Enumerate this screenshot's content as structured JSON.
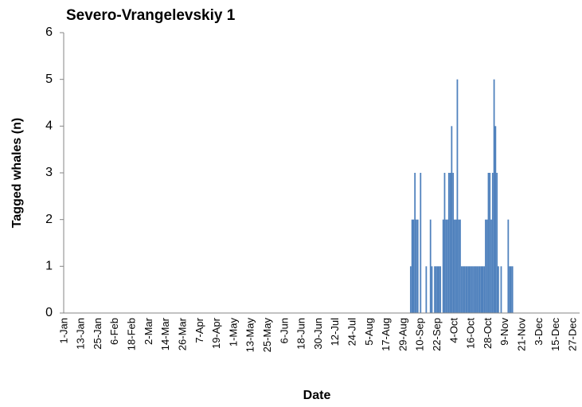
{
  "chart_data": {
    "type": "bar",
    "title": "Severo-Vrangelevskiy 1",
    "x_label": "Date",
    "y_label": "Tagged whales (n)",
    "color": "#4f81bd",
    "ylim": [
      0,
      6
    ],
    "yticks": [
      0,
      1,
      2,
      3,
      4,
      5,
      6
    ],
    "grid": false,
    "categories": [
      "1-Jan",
      null,
      null,
      null,
      null,
      null,
      null,
      null,
      null,
      null,
      null,
      null,
      "13-Jan",
      null,
      null,
      null,
      null,
      null,
      null,
      null,
      null,
      null,
      null,
      null,
      "25-Jan",
      null,
      null,
      null,
      null,
      null,
      null,
      null,
      null,
      null,
      null,
      null,
      "6-Feb",
      null,
      null,
      null,
      null,
      null,
      null,
      null,
      null,
      null,
      null,
      null,
      "18-Feb",
      null,
      null,
      null,
      null,
      null,
      null,
      null,
      null,
      null,
      null,
      null,
      "2-Mar",
      null,
      null,
      null,
      null,
      null,
      null,
      null,
      null,
      null,
      null,
      null,
      "14-Mar",
      null,
      null,
      null,
      null,
      null,
      null,
      null,
      null,
      null,
      null,
      null,
      "26-Mar",
      null,
      null,
      null,
      null,
      null,
      null,
      null,
      null,
      null,
      null,
      null,
      "7-Apr",
      null,
      null,
      null,
      null,
      null,
      null,
      null,
      null,
      null,
      null,
      null,
      "19-Apr",
      null,
      null,
      null,
      null,
      null,
      null,
      null,
      null,
      null,
      null,
      null,
      "1-May",
      null,
      null,
      null,
      null,
      null,
      null,
      null,
      null,
      null,
      null,
      null,
      "13-May",
      null,
      null,
      null,
      null,
      null,
      null,
      null,
      null,
      null,
      null,
      null,
      "25-May",
      null,
      null,
      null,
      null,
      null,
      null,
      null,
      null,
      null,
      null,
      null,
      "6-Jun",
      null,
      null,
      null,
      null,
      null,
      null,
      null,
      null,
      null,
      null,
      null,
      "18-Jun",
      null,
      null,
      null,
      null,
      null,
      null,
      null,
      null,
      null,
      null,
      null,
      "30-Jun",
      null,
      null,
      null,
      null,
      null,
      null,
      null,
      null,
      null,
      null,
      null,
      "12-Jul",
      null,
      null,
      null,
      null,
      null,
      null,
      null,
      null,
      null,
      null,
      null,
      "24-Jul",
      null,
      null,
      null,
      null,
      null,
      null,
      null,
      null,
      null,
      null,
      null,
      "5-Aug",
      null,
      null,
      null,
      null,
      null,
      null,
      null,
      null,
      null,
      null,
      null,
      "17-Aug",
      null,
      null,
      null,
      null,
      null,
      null,
      null,
      null,
      null,
      null,
      null,
      "29-Aug",
      null,
      null,
      null,
      null,
      null,
      null,
      null,
      null,
      null,
      null,
      null,
      "10-Sep",
      null,
      null,
      null,
      null,
      null,
      null,
      null,
      null,
      null,
      null,
      null,
      "22-Sep",
      null,
      null,
      null,
      null,
      null,
      null,
      null,
      null,
      null,
      null,
      null,
      "4-Oct",
      null,
      null,
      null,
      null,
      null,
      null,
      null,
      null,
      null,
      null,
      null,
      "16-Oct",
      null,
      null,
      null,
      null,
      null,
      null,
      null,
      null,
      null,
      null,
      null,
      "28-Oct",
      null,
      null,
      null,
      null,
      null,
      null,
      null,
      null,
      null,
      null,
      null,
      "9-Nov",
      null,
      null,
      null,
      null,
      null,
      null,
      null,
      null,
      null,
      null,
      null,
      "21-Nov",
      null,
      null,
      null,
      null,
      null,
      null,
      null,
      null,
      null,
      null,
      null,
      "3-Dec",
      null,
      null,
      null,
      null,
      null,
      null,
      null,
      null,
      null,
      null,
      null,
      "15-Dec",
      null,
      null,
      null,
      null,
      null,
      null,
      null,
      null,
      null,
      null,
      null,
      "27-Dec",
      null,
      null,
      null,
      null
    ],
    "values": [
      0,
      0,
      0,
      0,
      0,
      0,
      0,
      0,
      0,
      0,
      0,
      0,
      0,
      0,
      0,
      0,
      0,
      0,
      0,
      0,
      0,
      0,
      0,
      0,
      0,
      0,
      0,
      0,
      0,
      0,
      0,
      0,
      0,
      0,
      0,
      0,
      0,
      0,
      0,
      0,
      0,
      0,
      0,
      0,
      0,
      0,
      0,
      0,
      0,
      0,
      0,
      0,
      0,
      0,
      0,
      0,
      0,
      0,
      0,
      0,
      0,
      0,
      0,
      0,
      0,
      0,
      0,
      0,
      0,
      0,
      0,
      0,
      0,
      0,
      0,
      0,
      0,
      0,
      0,
      0,
      0,
      0,
      0,
      0,
      0,
      0,
      0,
      0,
      0,
      0,
      0,
      0,
      0,
      0,
      0,
      0,
      0,
      0,
      0,
      0,
      0,
      0,
      0,
      0,
      0,
      0,
      0,
      0,
      0,
      0,
      0,
      0,
      0,
      0,
      0,
      0,
      0,
      0,
      0,
      0,
      0,
      0,
      0,
      0,
      0,
      0,
      0,
      0,
      0,
      0,
      0,
      0,
      0,
      0,
      0,
      0,
      0,
      0,
      0,
      0,
      0,
      0,
      0,
      0,
      0,
      0,
      0,
      0,
      0,
      0,
      0,
      0,
      0,
      0,
      0,
      0,
      0,
      0,
      0,
      0,
      0,
      0,
      0,
      0,
      0,
      0,
      0,
      0,
      0,
      0,
      0,
      0,
      0,
      0,
      0,
      0,
      0,
      0,
      0,
      0,
      0,
      0,
      0,
      0,
      0,
      0,
      0,
      0,
      0,
      0,
      0,
      0,
      0,
      0,
      0,
      0,
      0,
      0,
      0,
      0,
      0,
      0,
      0,
      0,
      0,
      0,
      0,
      0,
      0,
      0,
      0,
      0,
      0,
      0,
      0,
      0,
      0,
      0,
      0,
      0,
      0,
      0,
      0,
      0,
      0,
      0,
      0,
      0,
      0,
      0,
      0,
      0,
      0,
      0,
      0,
      0,
      0,
      0,
      0,
      0,
      0,
      0,
      0,
      0,
      0,
      1,
      2,
      2,
      3,
      2,
      2,
      0,
      3,
      0,
      0,
      0,
      1,
      0,
      0,
      2,
      1,
      0,
      1,
      1,
      1,
      1,
      1,
      0,
      2,
      3,
      2,
      2,
      3,
      3,
      4,
      3,
      2,
      2,
      5,
      2,
      2,
      1,
      1,
      1,
      1,
      1,
      1,
      1,
      1,
      1,
      1,
      1,
      1,
      1,
      1,
      1,
      1,
      1,
      2,
      2,
      3,
      3,
      2,
      3,
      5,
      4,
      3,
      1,
      0,
      1,
      0,
      0,
      0,
      0,
      2,
      1,
      1,
      1,
      0,
      0,
      0,
      0,
      0,
      0,
      0,
      0,
      0,
      0,
      0,
      0,
      0,
      0,
      0,
      0,
      0,
      0,
      0,
      0,
      0,
      0,
      0,
      0,
      0,
      0,
      0,
      0,
      0,
      0,
      0,
      0,
      0,
      0,
      0,
      0,
      0,
      0,
      0,
      0,
      0,
      0,
      0,
      0,
      0,
      0,
      0
    ]
  }
}
